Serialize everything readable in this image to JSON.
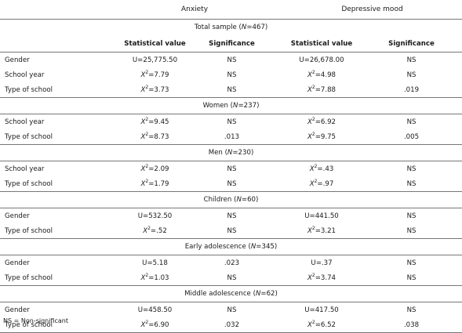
{
  "header": {
    "anxiety": "Anxiety",
    "depressive": "Depressive mood"
  },
  "colheads": {
    "stat": "Statistical value",
    "sig": "Significance"
  },
  "groups": [
    {
      "pre": "Total sample (",
      "n_label": "N",
      "post": "=467)",
      "show_colheads": true,
      "rows": [
        {
          "label": "Gender",
          "a_pre": "U=25,775.50",
          "a_sup": "",
          "a_post": "",
          "a_sig": "NS",
          "d_pre": "U=26,678.00",
          "d_sup": "",
          "d_post": "",
          "d_sig": "NS"
        },
        {
          "label": "School year",
          "a_pre": "X",
          "a_sup": "2",
          "a_post": "=7.79",
          "a_sig": "NS",
          "d_pre": "X",
          "d_sup": "2",
          "d_post": "=4.98",
          "d_sig": "NS"
        },
        {
          "label": "Type of school",
          "a_pre": "X",
          "a_sup": "2",
          "a_post": "=3.73",
          "a_sig": "NS",
          "d_pre": "X",
          "d_sup": "2",
          "d_post": "=7.88",
          "d_sig": ".019"
        }
      ]
    },
    {
      "pre": "Women (",
      "n_label": "N",
      "post": "=237)",
      "rows": [
        {
          "label": "School year",
          "a_pre": "X",
          "a_sup": "2",
          "a_post": "=9.45",
          "a_sig": "NS",
          "d_pre": "X",
          "d_sup": "2",
          "d_post": "=6.92",
          "d_sig": "NS"
        },
        {
          "label": "Type of school",
          "a_pre": "X",
          "a_sup": "2",
          "a_post": "=8.73",
          "a_sig": ".013",
          "d_pre": "X",
          "d_sup": "2",
          "d_post": "=9.75",
          "d_sig": ".005"
        }
      ]
    },
    {
      "pre": "Men (",
      "n_label": "N",
      "post": "=230)",
      "rows": [
        {
          "label": "School year",
          "a_pre": "X",
          "a_sup": "2",
          "a_post": "=2.09",
          "a_sig": "NS",
          "d_pre": "X",
          "d_sup": "2",
          "d_post": "=.43",
          "d_sig": "NS"
        },
        {
          "label": "Type of school",
          "a_pre": "X",
          "a_sup": "2",
          "a_post": "=1.79",
          "a_sig": "NS",
          "d_pre": "X",
          "d_sup": "2",
          "d_post": "=.97",
          "d_sig": "NS"
        }
      ]
    },
    {
      "pre": "Children (",
      "n_label": "N",
      "post": "=60)",
      "rows": [
        {
          "label": "Gender",
          "a_pre": "U=532.50",
          "a_sup": "",
          "a_post": "",
          "a_sig": "NS",
          "d_pre": "U=441.50",
          "d_sup": "",
          "d_post": "",
          "d_sig": "NS"
        },
        {
          "label": "Type of school",
          "a_pre": "X",
          "a_sup": "2",
          "a_post": "=.52",
          "a_sig": "NS",
          "d_pre": "X",
          "d_sup": "2",
          "d_post": "=3.21",
          "d_sig": "NS"
        }
      ]
    },
    {
      "pre": "Early adolescence (",
      "n_label": "N",
      "post": "=345)",
      "rows": [
        {
          "label": "Gender",
          "a_pre": "U=5.18",
          "a_sup": "",
          "a_post": "",
          "a_sig": ".023",
          "d_pre": "U=.37",
          "d_sup": "",
          "d_post": "",
          "d_sig": "NS"
        },
        {
          "label": "Type of school",
          "a_pre": "X",
          "a_sup": "2",
          "a_post": "=1.03",
          "a_sig": "NS",
          "d_pre": "X",
          "d_sup": "2",
          "d_post": "=3.74",
          "d_sig": "NS"
        }
      ]
    },
    {
      "pre": "Middle adolescence (",
      "n_label": "N",
      "post": "=62)",
      "rows": [
        {
          "label": "Gender",
          "a_pre": "U=458.50",
          "a_sup": "",
          "a_post": "",
          "a_sig": "NS",
          "d_pre": "U=417.50",
          "d_sup": "",
          "d_post": "",
          "d_sig": "NS"
        },
        {
          "label": "Type of school",
          "a_pre": "X",
          "a_sup": "2",
          "a_post": "=6.90",
          "a_sig": ".032",
          "d_pre": "X",
          "d_sup": "2",
          "d_post": "=6.52",
          "d_sig": ".038"
        }
      ]
    }
  ],
  "footnote": "NS = Non-significant"
}
